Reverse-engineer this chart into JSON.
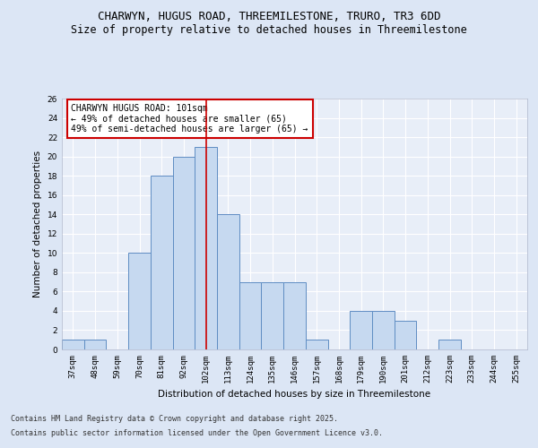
{
  "title_line1": "CHARWYN, HUGUS ROAD, THREEMILESTONE, TRURO, TR3 6DD",
  "title_line2": "Size of property relative to detached houses in Threemilestone",
  "xlabel": "Distribution of detached houses by size in Threemilestone",
  "ylabel": "Number of detached properties",
  "categories": [
    "37sqm",
    "48sqm",
    "59sqm",
    "70sqm",
    "81sqm",
    "92sqm",
    "102sqm",
    "113sqm",
    "124sqm",
    "135sqm",
    "146sqm",
    "157sqm",
    "168sqm",
    "179sqm",
    "190sqm",
    "201sqm",
    "212sqm",
    "223sqm",
    "233sqm",
    "244sqm",
    "255sqm"
  ],
  "values": [
    1,
    1,
    0,
    10,
    18,
    20,
    21,
    14,
    7,
    7,
    7,
    1,
    0,
    4,
    4,
    3,
    0,
    1,
    0,
    0,
    0
  ],
  "bar_color": "#c6d9f0",
  "bar_edge_color": "#5f8dc3",
  "vline_x": 6,
  "vline_color": "#cc0000",
  "annotation_title": "CHARWYN HUGUS ROAD: 101sqm",
  "annotation_line1": "← 49% of detached houses are smaller (65)",
  "annotation_line2": "49% of semi-detached houses are larger (65) →",
  "annotation_box_edge": "#cc0000",
  "ylim": [
    0,
    26
  ],
  "yticks": [
    0,
    2,
    4,
    6,
    8,
    10,
    12,
    14,
    16,
    18,
    20,
    22,
    24,
    26
  ],
  "bg_color": "#dce6f5",
  "plot_bg_color": "#e8eef8",
  "grid_color": "#ffffff",
  "footer_line1": "Contains HM Land Registry data © Crown copyright and database right 2025.",
  "footer_line2": "Contains public sector information licensed under the Open Government Licence v3.0.",
  "title_fontsize": 9,
  "subtitle_fontsize": 8.5,
  "axis_label_fontsize": 7.5,
  "tick_fontsize": 6.5,
  "annotation_fontsize": 7,
  "footer_fontsize": 6
}
